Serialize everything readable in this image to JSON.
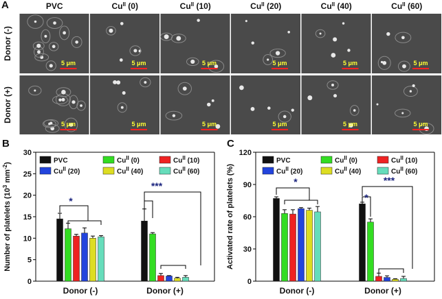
{
  "panel_labels": [
    "A",
    "B",
    "C"
  ],
  "image_grid": {
    "columns": [
      [
        {
          "text": "PVC"
        }
      ],
      [
        {
          "text": "Cu"
        },
        {
          "text": "II",
          "sup": true
        },
        {
          "text": " (0)"
        }
      ],
      [
        {
          "text": "Cu"
        },
        {
          "text": "II",
          "sup": true
        },
        {
          "text": " (10)"
        }
      ],
      [
        {
          "text": "Cu"
        },
        {
          "text": "II",
          "sup": true
        },
        {
          "text": " (20)"
        }
      ],
      [
        {
          "text": "Cu"
        },
        {
          "text": "II",
          "sup": true
        },
        {
          "text": " (40)"
        }
      ],
      [
        {
          "text": "Cu"
        },
        {
          "text": "II",
          "sup": true
        },
        {
          "text": " (60)"
        }
      ]
    ],
    "rows": [
      "Donor (-)",
      "Donor (+)"
    ],
    "scale_bar": "5 μm"
  },
  "chart_data": [
    {
      "type": "bar",
      "ylabel": [
        {
          "text": "Number of platelets (10"
        },
        {
          "text": "3",
          "sup": true
        },
        {
          "text": " mm"
        },
        {
          "text": "-2",
          "sup": true
        },
        {
          "text": ")"
        }
      ],
      "categories": [
        "Donor (-)",
        "Donor (+)"
      ],
      "ylim": [
        0,
        30
      ],
      "yticks": [
        0,
        5,
        10,
        15,
        20,
        25,
        30
      ],
      "series": [
        {
          "name": [
            {
              "text": "PVC"
            }
          ],
          "color": "#111111",
          "values": [
            14.5,
            14.0
          ],
          "errors": [
            1.3,
            2.8
          ]
        },
        {
          "name": [
            {
              "text": "Cu"
            },
            {
              "text": "II",
              "sup": true
            },
            {
              "text": " (0)"
            }
          ],
          "color": "#33dd22",
          "values": [
            12.2,
            11.0
          ],
          "errors": [
            1.3,
            0.3
          ]
        },
        {
          "name": [
            {
              "text": "Cu"
            },
            {
              "text": "II",
              "sup": true
            },
            {
              "text": " (10)"
            }
          ],
          "color": "#ee2222",
          "values": [
            10.5,
            1.3
          ],
          "errors": [
            0.4,
            0.5
          ]
        },
        {
          "name": [
            {
              "text": "Cu"
            },
            {
              "text": "II",
              "sup": true
            },
            {
              "text": " (20)"
            }
          ],
          "color": "#2244dd",
          "values": [
            11.2,
            1.2
          ],
          "errors": [
            1.2,
            0.1
          ]
        },
        {
          "name": [
            {
              "text": "Cu"
            },
            {
              "text": "II",
              "sup": true
            },
            {
              "text": " (40)"
            }
          ],
          "color": "#dddd22",
          "values": [
            10.0,
            0.7
          ],
          "errors": [
            0.5,
            0.2
          ]
        },
        {
          "name": [
            {
              "text": "Cu"
            },
            {
              "text": "II",
              "sup": true
            },
            {
              "text": " (60)"
            }
          ],
          "color": "#66ddbb",
          "values": [
            10.3,
            0.9
          ],
          "errors": [
            0.3,
            0.4
          ]
        }
      ],
      "annotations": [
        "*",
        "***"
      ]
    },
    {
      "type": "bar",
      "ylabel": [
        {
          "text": "Activated rate of platelets (%)"
        }
      ],
      "categories": [
        "Donor (-)",
        "Donor (+)"
      ],
      "ylim": [
        0,
        120
      ],
      "yticks": [
        0,
        30,
        60,
        90,
        120
      ],
      "series": [
        {
          "name": [
            {
              "text": "PVC"
            }
          ],
          "color": "#111111",
          "values": [
            77,
            72
          ],
          "errors": [
            1.5,
            1.5
          ]
        },
        {
          "name": [
            {
              "text": "Cu"
            },
            {
              "text": "II",
              "sup": true
            },
            {
              "text": " (0)"
            }
          ],
          "color": "#33dd22",
          "values": [
            63,
            55
          ],
          "errors": [
            3.5,
            3
          ]
        },
        {
          "name": [
            {
              "text": "Cu"
            },
            {
              "text": "II",
              "sup": true
            },
            {
              "text": " (10)"
            }
          ],
          "color": "#ee2222",
          "values": [
            62.5,
            4.5
          ],
          "errors": [
            4,
            3
          ]
        },
        {
          "name": [
            {
              "text": "Cu"
            },
            {
              "text": "II",
              "sup": true
            },
            {
              "text": " (20)"
            }
          ],
          "color": "#2244dd",
          "values": [
            67.5,
            3.5
          ],
          "errors": [
            1,
            1.5
          ]
        },
        {
          "name": [
            {
              "text": "Cu"
            },
            {
              "text": "II",
              "sup": true
            },
            {
              "text": " (40)"
            }
          ],
          "color": "#dddd22",
          "values": [
            66,
            1.8
          ],
          "errors": [
            2,
            0.5
          ]
        },
        {
          "name": [
            {
              "text": "Cu"
            },
            {
              "text": "II",
              "sup": true
            },
            {
              "text": " (60)"
            }
          ],
          "color": "#66ddbb",
          "values": [
            64.5,
            2.5
          ],
          "errors": [
            5,
            2
          ]
        }
      ],
      "annotations": [
        "*",
        "*",
        "***"
      ]
    }
  ]
}
